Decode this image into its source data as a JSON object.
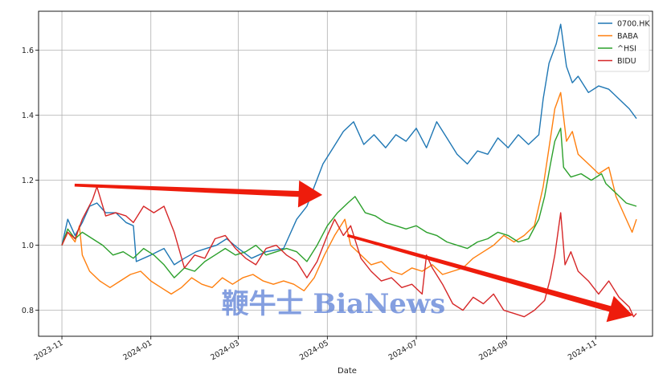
{
  "chart_data": {
    "type": "line",
    "title": "",
    "xlabel": "Date",
    "ylabel": "",
    "x_range": [
      "2023-10-16",
      "2024-12-10"
    ],
    "ylim": [
      0.72,
      1.72
    ],
    "grid": true,
    "legend_position": "top-right",
    "x_ticks": [
      "2023-11",
      "2024-01",
      "2024-03",
      "2024-05",
      "2024-07",
      "2024-09",
      "2024-11"
    ],
    "y_ticks": [
      0.8,
      1.0,
      1.2,
      1.4,
      1.6
    ],
    "series": [
      {
        "name": "0700.HK",
        "color": "#1f77b4",
        "points": [
          [
            "2023-11-01",
            1.0
          ],
          [
            "2023-11-05",
            1.08
          ],
          [
            "2023-11-10",
            1.03
          ],
          [
            "2023-11-15",
            1.07
          ],
          [
            "2023-11-20",
            1.12
          ],
          [
            "2023-11-25",
            1.13
          ],
          [
            "2023-12-01",
            1.1
          ],
          [
            "2023-12-08",
            1.1
          ],
          [
            "2023-12-15",
            1.07
          ],
          [
            "2023-12-20",
            1.06
          ],
          [
            "2023-12-22",
            0.95
          ],
          [
            "2024-01-01",
            0.97
          ],
          [
            "2024-01-10",
            0.99
          ],
          [
            "2024-01-17",
            0.94
          ],
          [
            "2024-01-24",
            0.96
          ],
          [
            "2024-02-01",
            0.98
          ],
          [
            "2024-02-08",
            0.99
          ],
          [
            "2024-02-15",
            1.0
          ],
          [
            "2024-02-22",
            1.02
          ],
          [
            "2024-03-01",
            0.99
          ],
          [
            "2024-03-10",
            0.96
          ],
          [
            "2024-03-20",
            0.98
          ],
          [
            "2024-04-01",
            0.99
          ],
          [
            "2024-04-10",
            1.08
          ],
          [
            "2024-04-17",
            1.12
          ],
          [
            "2024-04-22",
            1.18
          ],
          [
            "2024-04-28",
            1.25
          ],
          [
            "2024-05-05",
            1.3
          ],
          [
            "2024-05-12",
            1.35
          ],
          [
            "2024-05-19",
            1.38
          ],
          [
            "2024-05-26",
            1.31
          ],
          [
            "2024-06-02",
            1.34
          ],
          [
            "2024-06-10",
            1.3
          ],
          [
            "2024-06-17",
            1.34
          ],
          [
            "2024-06-24",
            1.32
          ],
          [
            "2024-07-01",
            1.36
          ],
          [
            "2024-07-08",
            1.3
          ],
          [
            "2024-07-15",
            1.38
          ],
          [
            "2024-07-22",
            1.33
          ],
          [
            "2024-07-29",
            1.28
          ],
          [
            "2024-08-05",
            1.25
          ],
          [
            "2024-08-12",
            1.29
          ],
          [
            "2024-08-19",
            1.28
          ],
          [
            "2024-08-26",
            1.33
          ],
          [
            "2024-09-02",
            1.3
          ],
          [
            "2024-09-09",
            1.34
          ],
          [
            "2024-09-16",
            1.31
          ],
          [
            "2024-09-23",
            1.34
          ],
          [
            "2024-09-26",
            1.45
          ],
          [
            "2024-09-30",
            1.56
          ],
          [
            "2024-10-05",
            1.62
          ],
          [
            "2024-10-08",
            1.68
          ],
          [
            "2024-10-12",
            1.55
          ],
          [
            "2024-10-16",
            1.5
          ],
          [
            "2024-10-20",
            1.52
          ],
          [
            "2024-10-27",
            1.47
          ],
          [
            "2024-11-03",
            1.49
          ],
          [
            "2024-11-10",
            1.48
          ],
          [
            "2024-11-17",
            1.45
          ],
          [
            "2024-11-24",
            1.42
          ],
          [
            "2024-11-29",
            1.39
          ]
        ]
      },
      {
        "name": "BABA",
        "color": "#ff7f0e",
        "points": [
          [
            "2023-11-01",
            1.0
          ],
          [
            "2023-11-05",
            1.04
          ],
          [
            "2023-11-10",
            1.01
          ],
          [
            "2023-11-13",
            1.06
          ],
          [
            "2023-11-15",
            0.97
          ],
          [
            "2023-11-20",
            0.92
          ],
          [
            "2023-11-27",
            0.89
          ],
          [
            "2023-12-04",
            0.87
          ],
          [
            "2023-12-11",
            0.89
          ],
          [
            "2023-12-18",
            0.91
          ],
          [
            "2023-12-25",
            0.92
          ],
          [
            "2024-01-01",
            0.89
          ],
          [
            "2024-01-08",
            0.87
          ],
          [
            "2024-01-15",
            0.85
          ],
          [
            "2024-01-22",
            0.87
          ],
          [
            "2024-01-29",
            0.9
          ],
          [
            "2024-02-05",
            0.88
          ],
          [
            "2024-02-12",
            0.87
          ],
          [
            "2024-02-19",
            0.9
          ],
          [
            "2024-02-26",
            0.88
          ],
          [
            "2024-03-04",
            0.9
          ],
          [
            "2024-03-11",
            0.91
          ],
          [
            "2024-03-18",
            0.89
          ],
          [
            "2024-03-25",
            0.88
          ],
          [
            "2024-04-01",
            0.89
          ],
          [
            "2024-04-08",
            0.88
          ],
          [
            "2024-04-15",
            0.86
          ],
          [
            "2024-04-22",
            0.9
          ],
          [
            "2024-04-29",
            0.97
          ],
          [
            "2024-05-06",
            1.03
          ],
          [
            "2024-05-13",
            1.08
          ],
          [
            "2024-05-17",
            1.0
          ],
          [
            "2024-05-24",
            0.97
          ],
          [
            "2024-05-31",
            0.94
          ],
          [
            "2024-06-07",
            0.95
          ],
          [
            "2024-06-14",
            0.92
          ],
          [
            "2024-06-21",
            0.91
          ],
          [
            "2024-06-28",
            0.93
          ],
          [
            "2024-07-05",
            0.92
          ],
          [
            "2024-07-12",
            0.94
          ],
          [
            "2024-07-19",
            0.91
          ],
          [
            "2024-07-26",
            0.92
          ],
          [
            "2024-08-02",
            0.93
          ],
          [
            "2024-08-09",
            0.96
          ],
          [
            "2024-08-16",
            0.98
          ],
          [
            "2024-08-23",
            1.0
          ],
          [
            "2024-08-30",
            1.03
          ],
          [
            "2024-09-06",
            1.01
          ],
          [
            "2024-09-13",
            1.03
          ],
          [
            "2024-09-20",
            1.06
          ],
          [
            "2024-09-26",
            1.18
          ],
          [
            "2024-09-30",
            1.3
          ],
          [
            "2024-10-04",
            1.42
          ],
          [
            "2024-10-08",
            1.47
          ],
          [
            "2024-10-12",
            1.32
          ],
          [
            "2024-10-16",
            1.35
          ],
          [
            "2024-10-20",
            1.28
          ],
          [
            "2024-10-27",
            1.25
          ],
          [
            "2024-11-03",
            1.22
          ],
          [
            "2024-11-10",
            1.24
          ],
          [
            "2024-11-15",
            1.15
          ],
          [
            "2024-11-20",
            1.1
          ],
          [
            "2024-11-26",
            1.04
          ],
          [
            "2024-11-29",
            1.08
          ]
        ]
      },
      {
        "name": "^HSI",
        "color": "#2ca02c",
        "points": [
          [
            "2023-11-01",
            1.0
          ],
          [
            "2023-11-05",
            1.05
          ],
          [
            "2023-11-10",
            1.02
          ],
          [
            "2023-11-15",
            1.04
          ],
          [
            "2023-11-22",
            1.02
          ],
          [
            "2023-11-29",
            1.0
          ],
          [
            "2023-12-06",
            0.97
          ],
          [
            "2023-12-13",
            0.98
          ],
          [
            "2023-12-20",
            0.96
          ],
          [
            "2023-12-27",
            0.99
          ],
          [
            "2024-01-03",
            0.97
          ],
          [
            "2024-01-10",
            0.94
          ],
          [
            "2024-01-17",
            0.9
          ],
          [
            "2024-01-24",
            0.93
          ],
          [
            "2024-01-31",
            0.92
          ],
          [
            "2024-02-07",
            0.95
          ],
          [
            "2024-02-14",
            0.97
          ],
          [
            "2024-02-21",
            0.99
          ],
          [
            "2024-02-28",
            0.97
          ],
          [
            "2024-03-06",
            0.98
          ],
          [
            "2024-03-13",
            1.0
          ],
          [
            "2024-03-20",
            0.97
          ],
          [
            "2024-03-27",
            0.98
          ],
          [
            "2024-04-03",
            0.99
          ],
          [
            "2024-04-10",
            0.98
          ],
          [
            "2024-04-17",
            0.95
          ],
          [
            "2024-04-24",
            1.0
          ],
          [
            "2024-05-01",
            1.06
          ],
          [
            "2024-05-08",
            1.1
          ],
          [
            "2024-05-15",
            1.13
          ],
          [
            "2024-05-20",
            1.15
          ],
          [
            "2024-05-27",
            1.1
          ],
          [
            "2024-06-03",
            1.09
          ],
          [
            "2024-06-10",
            1.07
          ],
          [
            "2024-06-17",
            1.06
          ],
          [
            "2024-06-24",
            1.05
          ],
          [
            "2024-07-01",
            1.06
          ],
          [
            "2024-07-08",
            1.04
          ],
          [
            "2024-07-15",
            1.03
          ],
          [
            "2024-07-22",
            1.01
          ],
          [
            "2024-07-29",
            1.0
          ],
          [
            "2024-08-05",
            0.99
          ],
          [
            "2024-08-12",
            1.01
          ],
          [
            "2024-08-19",
            1.02
          ],
          [
            "2024-08-26",
            1.04
          ],
          [
            "2024-09-02",
            1.03
          ],
          [
            "2024-09-09",
            1.01
          ],
          [
            "2024-09-16",
            1.02
          ],
          [
            "2024-09-23",
            1.08
          ],
          [
            "2024-09-27",
            1.15
          ],
          [
            "2024-10-01",
            1.25
          ],
          [
            "2024-10-04",
            1.32
          ],
          [
            "2024-10-08",
            1.36
          ],
          [
            "2024-10-10",
            1.24
          ],
          [
            "2024-10-15",
            1.21
          ],
          [
            "2024-10-22",
            1.22
          ],
          [
            "2024-10-29",
            1.2
          ],
          [
            "2024-11-05",
            1.22
          ],
          [
            "2024-11-08",
            1.19
          ],
          [
            "2024-11-15",
            1.16
          ],
          [
            "2024-11-22",
            1.13
          ],
          [
            "2024-11-29",
            1.12
          ]
        ]
      },
      {
        "name": "BIDU",
        "color": "#d62728",
        "points": [
          [
            "2023-11-01",
            1.0
          ],
          [
            "2023-11-05",
            1.04
          ],
          [
            "2023-11-10",
            1.02
          ],
          [
            "2023-11-15",
            1.08
          ],
          [
            "2023-11-22",
            1.14
          ],
          [
            "2023-11-25",
            1.18
          ],
          [
            "2023-12-01",
            1.09
          ],
          [
            "2023-12-08",
            1.1
          ],
          [
            "2023-12-15",
            1.09
          ],
          [
            "2023-12-20",
            1.07
          ],
          [
            "2023-12-27",
            1.12
          ],
          [
            "2024-01-03",
            1.1
          ],
          [
            "2024-01-10",
            1.12
          ],
          [
            "2024-01-17",
            1.04
          ],
          [
            "2024-01-24",
            0.93
          ],
          [
            "2024-01-31",
            0.97
          ],
          [
            "2024-02-07",
            0.96
          ],
          [
            "2024-02-14",
            1.02
          ],
          [
            "2024-02-21",
            1.03
          ],
          [
            "2024-02-28",
            0.99
          ],
          [
            "2024-03-06",
            0.96
          ],
          [
            "2024-03-13",
            0.94
          ],
          [
            "2024-03-20",
            0.99
          ],
          [
            "2024-03-27",
            1.0
          ],
          [
            "2024-04-03",
            0.97
          ],
          [
            "2024-04-10",
            0.95
          ],
          [
            "2024-04-17",
            0.9
          ],
          [
            "2024-04-24",
            0.95
          ],
          [
            "2024-05-01",
            1.03
          ],
          [
            "2024-05-06",
            1.08
          ],
          [
            "2024-05-12",
            1.03
          ],
          [
            "2024-05-17",
            1.06
          ],
          [
            "2024-05-24",
            0.96
          ],
          [
            "2024-05-31",
            0.92
          ],
          [
            "2024-06-07",
            0.89
          ],
          [
            "2024-06-14",
            0.9
          ],
          [
            "2024-06-21",
            0.87
          ],
          [
            "2024-06-28",
            0.88
          ],
          [
            "2024-07-05",
            0.85
          ],
          [
            "2024-07-08",
            0.97
          ],
          [
            "2024-07-12",
            0.93
          ],
          [
            "2024-07-19",
            0.88
          ],
          [
            "2024-07-26",
            0.82
          ],
          [
            "2024-08-02",
            0.8
          ],
          [
            "2024-08-09",
            0.84
          ],
          [
            "2024-08-16",
            0.82
          ],
          [
            "2024-08-23",
            0.85
          ],
          [
            "2024-08-30",
            0.8
          ],
          [
            "2024-09-06",
            0.79
          ],
          [
            "2024-09-13",
            0.78
          ],
          [
            "2024-09-20",
            0.8
          ],
          [
            "2024-09-27",
            0.83
          ],
          [
            "2024-10-01",
            0.9
          ],
          [
            "2024-10-04",
            0.97
          ],
          [
            "2024-10-08",
            1.1
          ],
          [
            "2024-10-11",
            0.94
          ],
          [
            "2024-10-15",
            0.98
          ],
          [
            "2024-10-20",
            0.92
          ],
          [
            "2024-10-27",
            0.89
          ],
          [
            "2024-11-03",
            0.85
          ],
          [
            "2024-11-10",
            0.89
          ],
          [
            "2024-11-17",
            0.84
          ],
          [
            "2024-11-24",
            0.81
          ],
          [
            "2024-11-27",
            0.78
          ],
          [
            "2024-11-29",
            0.79
          ]
        ]
      }
    ],
    "annotations": [
      {
        "type": "arrow",
        "color": "#ee1c0c",
        "from": [
          "2023-11-10",
          1.185
        ],
        "to": [
          "2024-04-27",
          1.155
        ]
      },
      {
        "type": "arrow",
        "color": "#ee1c0c",
        "from": [
          "2024-05-15",
          1.03
        ],
        "to": [
          "2024-11-26",
          0.785
        ]
      }
    ]
  },
  "watermark": "鞭牛士 BiaNews"
}
